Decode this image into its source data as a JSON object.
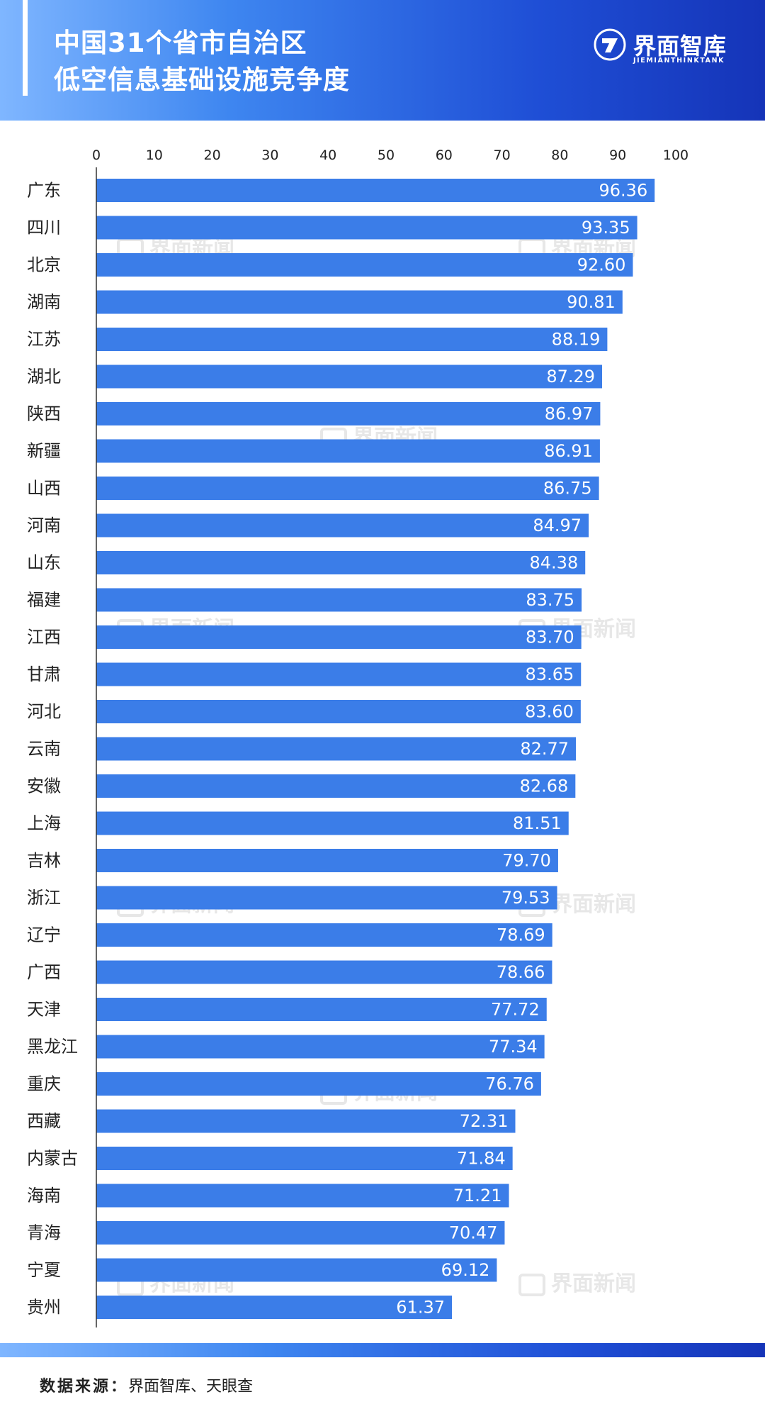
{
  "header": {
    "title_line1": "中国31个省市自治区",
    "title_line2": "低空信息基础设施竞争度",
    "brand_name": "界面智库",
    "brand_sub": "JIEMIANTHINKTANK"
  },
  "watermark_text": "界面新闻",
  "chart_data": {
    "type": "bar",
    "orientation": "horizontal",
    "title": "中国31个省市自治区 低空信息基础设施竞争度",
    "xlim": [
      0,
      100
    ],
    "xticks": [
      0,
      10,
      20,
      30,
      40,
      50,
      60,
      70,
      80,
      90,
      100
    ],
    "xtick_position": "top",
    "grid": false,
    "legend": "none",
    "bar_color": "#3b7de8",
    "categories": [
      "广东",
      "四川",
      "北京",
      "湖南",
      "江苏",
      "湖北",
      "陕西",
      "新疆",
      "山西",
      "河南",
      "山东",
      "福建",
      "江西",
      "甘肃",
      "河北",
      "云南",
      "安徽",
      "上海",
      "吉林",
      "浙江",
      "辽宁",
      "广西",
      "天津",
      "黑龙江",
      "重庆",
      "西藏",
      "内蒙古",
      "海南",
      "青海",
      "宁夏",
      "贵州"
    ],
    "values": [
      96.36,
      93.35,
      92.6,
      90.81,
      88.19,
      87.29,
      86.97,
      86.91,
      86.75,
      84.97,
      84.38,
      83.75,
      83.7,
      83.65,
      83.6,
      82.77,
      82.68,
      81.51,
      79.7,
      79.53,
      78.69,
      78.66,
      77.72,
      77.34,
      76.76,
      72.31,
      71.84,
      71.21,
      70.47,
      69.12,
      61.37
    ],
    "value_labels": [
      "96.36",
      "93.35",
      "92.60",
      "90.81",
      "88.19",
      "87.29",
      "86.97",
      "86.91",
      "86.75",
      "84.97",
      "84.38",
      "83.75",
      "83.70",
      "83.65",
      "83.60",
      "82.77",
      "82.68",
      "81.51",
      "79.70",
      "79.53",
      "78.69",
      "78.66",
      "77.72",
      "77.34",
      "76.76",
      "72.31",
      "71.84",
      "71.21",
      "70.47",
      "69.12",
      "61.37"
    ]
  },
  "footer": {
    "source_label": "数据来源：",
    "source_text": "界面智库、天眼查"
  }
}
